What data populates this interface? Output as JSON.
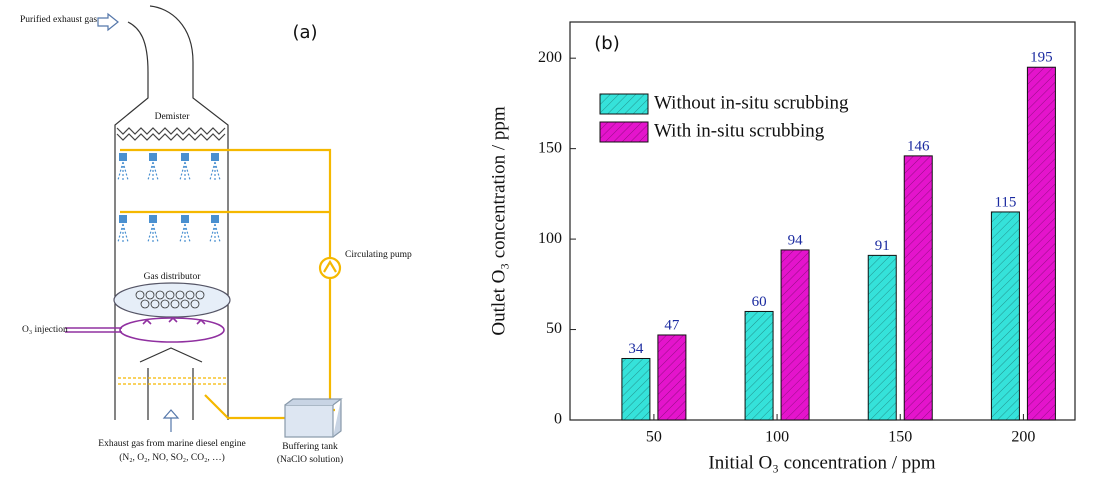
{
  "diagram": {
    "label": "(a)",
    "texts": {
      "outlet": "Purified exhaust gas",
      "demister": "Demister",
      "pump": "Circulating pump",
      "distributor": "Gas distributor",
      "injection": "O₃ injection",
      "inlet": "Exhaust gas from marine diesel engine",
      "inlet_gases": "(N₂, O₂, NO, SO₂, CO₂, …)",
      "tank": "Buffering tank",
      "tank_solution": "(NaClO solution)"
    }
  },
  "chart_data": {
    "type": "bar",
    "label": "(b)",
    "x_label": "Initial O₃ concentration / ppm",
    "y_label": "Outlet O₃ concentration / ppm",
    "categories": [
      "50",
      "100",
      "150",
      "200"
    ],
    "series": [
      {
        "name": "Without in-situ scrubbing",
        "color": "#35e2da",
        "values": [
          34,
          60,
          91,
          115
        ]
      },
      {
        "name": "With in-situ scrubbing",
        "color": "#e414cc",
        "values": [
          47,
          94,
          146,
          195
        ]
      }
    ],
    "ylim": [
      0,
      220
    ],
    "yticks": [
      0,
      50,
      100,
      150,
      200
    ],
    "legend": "upper left",
    "hatch": true
  }
}
